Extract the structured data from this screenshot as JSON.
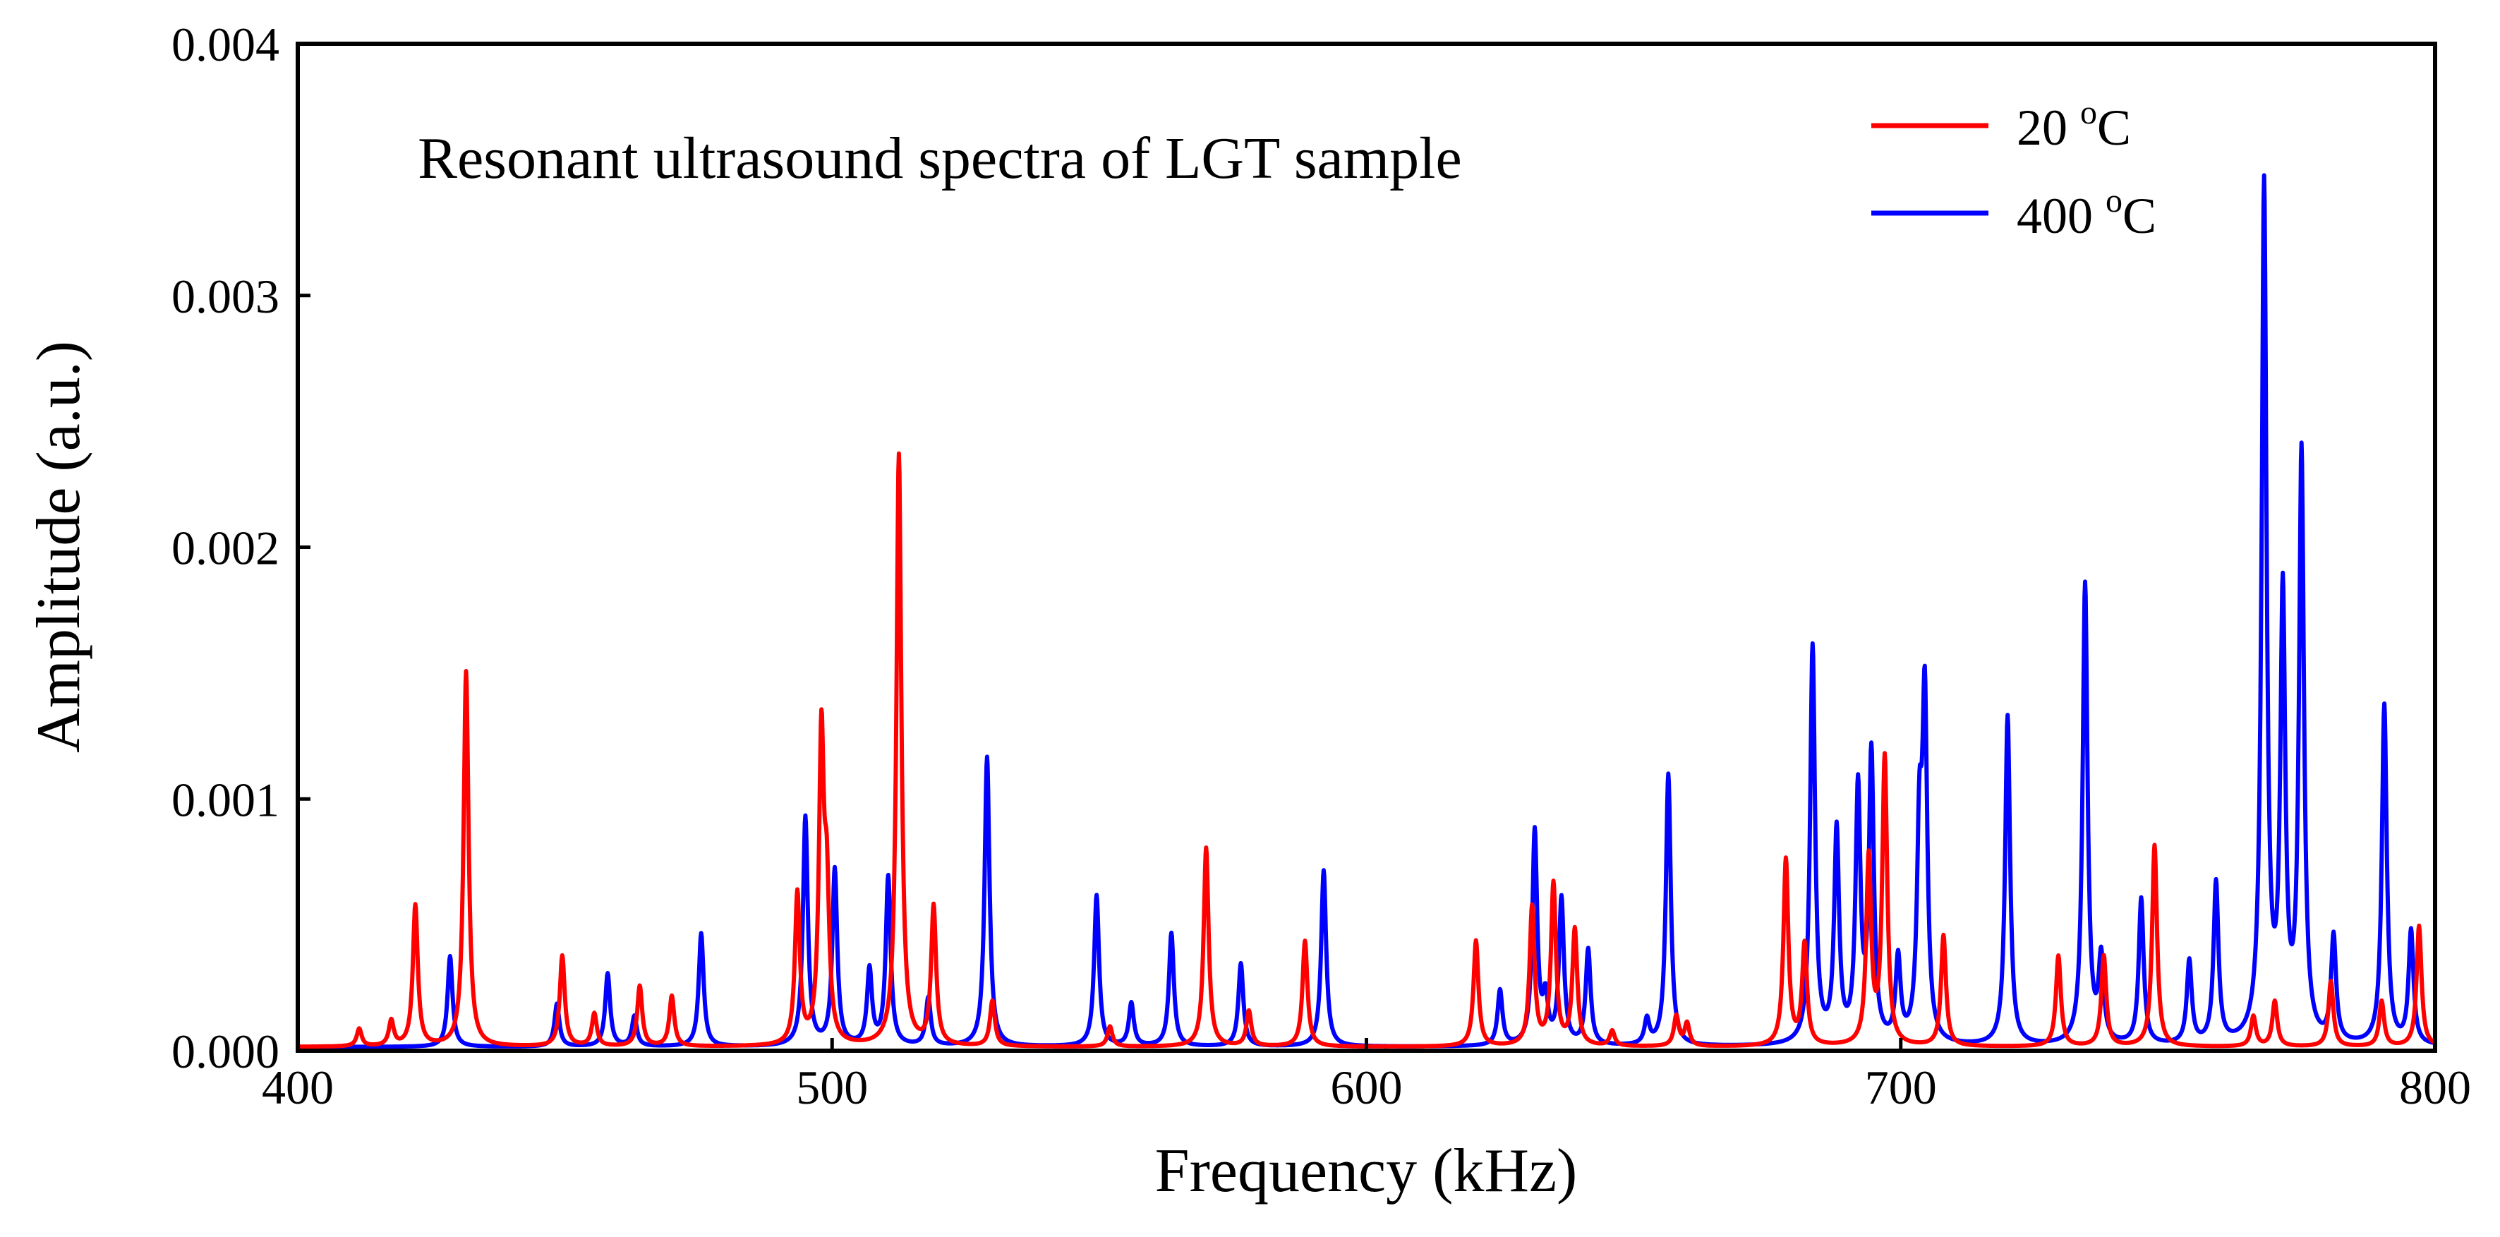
{
  "chart_data": {
    "type": "line",
    "title": "",
    "annotation": "Resonant ultrasound spectra of LGT sample",
    "xlabel": "Frequency (kHz)",
    "ylabel": "Amplitude (a.u.)",
    "xlim": [
      400,
      800
    ],
    "ylim": [
      0,
      0.004
    ],
    "xticks": [
      400,
      500,
      600,
      700,
      800
    ],
    "xtick_labels": [
      "400",
      "500",
      "600",
      "700",
      "800"
    ],
    "yticks": [
      0,
      0.001,
      0.002,
      0.003,
      0.004
    ],
    "ytick_labels": [
      "0.000",
      "0.001",
      "0.002",
      "0.003",
      "0.004"
    ],
    "grid": false,
    "legend_position": "top-right",
    "series": [
      {
        "name": "20 oC",
        "name_main": "20 ",
        "name_sup": "o",
        "name_tail": "C",
        "color": "#ff0000",
        "peaks": [
          [
            411.5,
            7e-05
          ],
          [
            417.5,
            0.0001
          ],
          [
            422,
            0.00056
          ],
          [
            431.5,
            0.00149
          ],
          [
            449.5,
            0.00036
          ],
          [
            455.5,
            0.00013
          ],
          [
            464,
            0.00024
          ],
          [
            470,
            0.0002
          ],
          [
            493.5,
            0.0006
          ],
          [
            498,
            0.0012
          ],
          [
            499,
            0.00055
          ],
          [
            512.5,
            0.00235
          ],
          [
            519,
            0.00055
          ],
          [
            530,
            0.00018
          ],
          [
            552,
            8e-05
          ],
          [
            570,
            0.00079
          ],
          [
            578,
            0.00014
          ],
          [
            588.5,
            0.00042
          ],
          [
            620.5,
            0.00042
          ],
          [
            631,
            0.00055
          ],
          [
            635,
            0.00064
          ],
          [
            639,
            0.00046
          ],
          [
            646,
            6e-05
          ],
          [
            658,
            0.00012
          ],
          [
            660,
            9e-05
          ],
          [
            678.5,
            0.00074
          ],
          [
            682,
            0.0004
          ],
          [
            694,
            0.00074
          ],
          [
            697,
            0.00114
          ],
          [
            708,
            0.00044
          ],
          [
            729.5,
            0.00036
          ],
          [
            738,
            0.00036
          ],
          [
            747.5,
            0.0008
          ],
          [
            766,
            0.00012
          ],
          [
            770,
            0.00018
          ],
          [
            780.5,
            0.00026
          ],
          [
            790,
            0.00018
          ],
          [
            797,
            0.00048
          ]
        ]
      },
      {
        "name": "400 oC",
        "name_main": "400 ",
        "name_sup": "o",
        "name_tail": "C",
        "color": "#0000ff",
        "peaks": [
          [
            428.5,
            0.00036
          ],
          [
            448.5,
            0.00017
          ],
          [
            458,
            0.00029
          ],
          [
            463,
            0.00012
          ],
          [
            475.5,
            0.00045
          ],
          [
            495,
            0.00091
          ],
          [
            500.5,
            0.0007
          ],
          [
            507,
            0.0003
          ],
          [
            510.5,
            0.00067
          ],
          [
            518,
            0.00019
          ],
          [
            529,
            0.00115
          ],
          [
            549.5,
            0.0006
          ],
          [
            556,
            0.00017
          ],
          [
            563.5,
            0.00045
          ],
          [
            576.5,
            0.00033
          ],
          [
            592,
            0.0007
          ],
          [
            625,
            0.00022
          ],
          [
            631.5,
            0.00085
          ],
          [
            633.5,
            0.00017
          ],
          [
            636.5,
            0.00058
          ],
          [
            641.5,
            0.00038
          ],
          [
            652.5,
            0.0001
          ],
          [
            656.5,
            0.00108
          ],
          [
            683.5,
            0.00158
          ],
          [
            688,
            0.00084
          ],
          [
            692,
            0.001
          ],
          [
            694.5,
            0.00114
          ],
          [
            699.5,
            0.00033
          ],
          [
            703.5,
            0.00077
          ],
          [
            704.5,
            0.00132
          ],
          [
            720,
            0.00131
          ],
          [
            734.5,
            0.00183
          ],
          [
            737.5,
            0.00033
          ],
          [
            745,
            0.00058
          ],
          [
            754,
            0.00033
          ],
          [
            759,
            0.00064
          ],
          [
            768,
            0.0034
          ],
          [
            771.5,
            0.00174
          ],
          [
            775,
            0.00233
          ],
          [
            781,
            0.00042
          ],
          [
            790.5,
            0.00135
          ],
          [
            795.5,
            0.00045
          ]
        ]
      }
    ]
  }
}
